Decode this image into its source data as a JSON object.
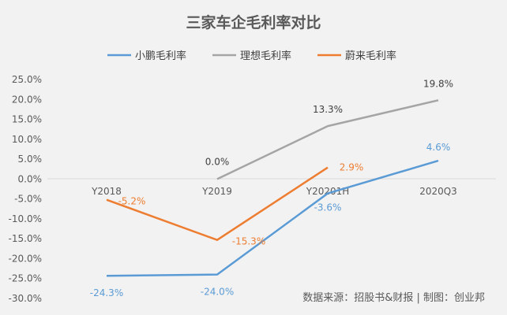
{
  "chart_data": {
    "type": "line",
    "title": "三家车企毛利率对比",
    "categories": [
      "Y2018",
      "Y2019",
      "Y20201H",
      "2020Q3"
    ],
    "ylim": [
      -30,
      25
    ],
    "yticks": [
      "25.0%",
      "20.0%",
      "15.0%",
      "10.0%",
      "5.0%",
      "0.0%",
      "-5.0%",
      "-10.0%",
      "-15.0%",
      "-20.0%",
      "-25.0%",
      "-30.0%"
    ],
    "grid": false,
    "legend_position": "top",
    "series": [
      {
        "name": "小鹏毛利率",
        "color": "#5b9bd5",
        "values": [
          -24.3,
          -24.0,
          -3.6,
          4.6
        ],
        "labels": [
          "-24.3%",
          "-24.0%",
          "-3.6%",
          "4.6%"
        ]
      },
      {
        "name": "理想毛利率",
        "color": "#a5a5a5",
        "values": [
          null,
          0.0,
          13.3,
          19.8
        ],
        "labels": [
          null,
          "0.0%",
          "13.3%",
          "19.8%"
        ]
      },
      {
        "name": "蔚来毛利率",
        "color": "#ed7d31",
        "values": [
          -5.2,
          -15.3,
          2.9,
          null
        ],
        "labels": [
          "-5.2%",
          "-15.3%",
          "2.9%",
          null
        ]
      }
    ],
    "source": "数据来源：招股书&财报 | 制图：创业邦"
  }
}
